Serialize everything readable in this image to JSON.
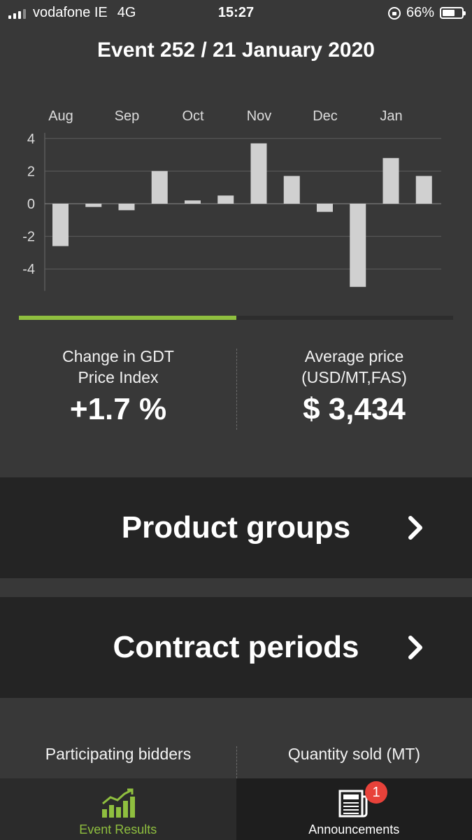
{
  "status_bar": {
    "carrier": "vodafone IE",
    "network": "4G",
    "time": "15:27",
    "battery": "66%",
    "battery_level": 0.66
  },
  "header": {
    "title": "Event 252 / 21 January 2020"
  },
  "chart_data": {
    "type": "bar",
    "categories": [
      "Aug",
      "",
      "Sep",
      "",
      "Oct",
      "",
      "Nov",
      "",
      "Dec",
      "",
      "Jan",
      ""
    ],
    "month_labels": [
      "Aug",
      "Sep",
      "Oct",
      "Nov",
      "Dec",
      "Jan"
    ],
    "values": [
      -2.6,
      -0.2,
      -0.4,
      2.0,
      0.2,
      0.5,
      3.7,
      1.7,
      -0.5,
      -5.1,
      2.8,
      1.7
    ],
    "ylim": [
      -5,
      4
    ],
    "yticks": [
      "4",
      "2",
      "0",
      "-2",
      "-4"
    ],
    "ytick_values": [
      4,
      2,
      0,
      -2,
      -4
    ],
    "grid": true,
    "bar_color": "#d0d0d0"
  },
  "tabs_progress": {
    "active_fraction": 0.5,
    "accent": "#8fbf3f"
  },
  "stats": {
    "gdt": {
      "label_line1": "Change in GDT",
      "label_line2": "Price Index",
      "value": "+1.7 %"
    },
    "avg_price": {
      "label_line1": "Average price",
      "label_line2": "(USD/MT,FAS)",
      "value": "$ 3,434"
    },
    "bidders": {
      "label": "Participating bidders"
    },
    "quantity": {
      "label": "Quantity sold (MT)"
    }
  },
  "nav": {
    "product_groups": "Product groups",
    "contract_periods": "Contract periods"
  },
  "tabbar": {
    "results_label": "Event Results",
    "announcements_label": "Announcements",
    "badge_count": "1"
  }
}
